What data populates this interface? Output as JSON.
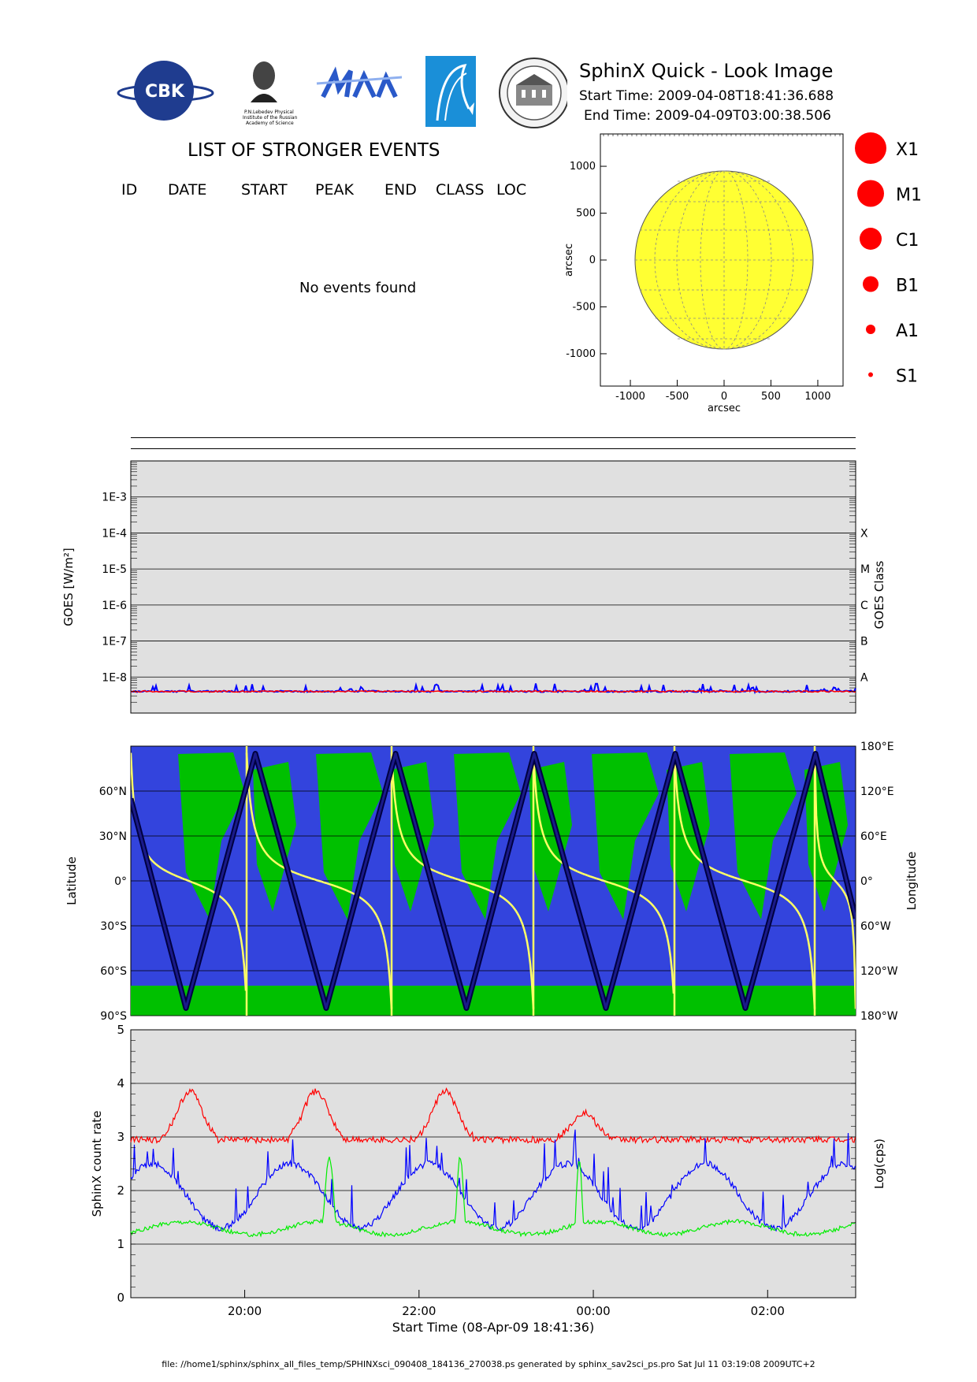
{
  "header": {
    "title": "SphinX Quick - Look Image",
    "start_time": "Start Time: 2009-04-08T18:41:36.688",
    "end_time": "End Time: 2009-04-09T03:00:38.506",
    "logos": [
      {
        "name": "cbk-pan-logo",
        "text": "CBK"
      },
      {
        "name": "lebedev-institute-logo",
        "text": "P.N.Lebedev Physical Institute of the Russian Academy of Science"
      },
      {
        "name": "mifi-logo",
        "text": ""
      },
      {
        "name": "comet-logo",
        "text": ""
      },
      {
        "name": "seal-logo",
        "text": ""
      }
    ]
  },
  "events": {
    "title": "LIST OF STRONGER EVENTS",
    "columns": [
      "ID",
      "DATE",
      "START",
      "PEAK",
      "END",
      "CLASS",
      "LOC"
    ],
    "empty_text": "No events found"
  },
  "sun_map": {
    "xlabel": "arcsec",
    "ylabel": "arcsec",
    "xticks": [
      "-1000",
      "-500",
      "0",
      "500",
      "1000"
    ],
    "yticks": [
      "1000",
      "500",
      "0",
      "-500",
      "-1000"
    ],
    "disk_color": "#ffff33"
  },
  "size_legend": [
    {
      "label": "X1"
    },
    {
      "label": "M1"
    },
    {
      "label": "C1"
    },
    {
      "label": "B1"
    },
    {
      "label": "A1"
    },
    {
      "label": "S1"
    }
  ],
  "chart_data": [
    {
      "type": "line",
      "ylabel": "GOES [W/m²]",
      "y2label": "GOES Class",
      "yscale": "log",
      "ylim": [
        1e-09,
        0.01
      ],
      "ytick_labels": [
        "1E-3",
        "1E-4",
        "1E-5",
        "1E-6",
        "1E-7",
        "1E-8"
      ],
      "class_labels": [
        "X",
        "M",
        "C",
        "B",
        "A"
      ],
      "series": [
        {
          "color": "#0000ff",
          "baseline": 4e-09
        },
        {
          "color": "#ff0000",
          "baseline": 4e-09
        }
      ],
      "background": "#e0e0e0"
    },
    {
      "type": "line",
      "ylabel": "Latitude",
      "y2label": "Longitude",
      "ylim": [
        -90,
        90
      ],
      "lat_ticks": [
        "60°N",
        "30°N",
        "0°",
        "30°S",
        "60°S",
        "90°S"
      ],
      "lon_ticks": [
        "180°E",
        "120°E",
        "60°E",
        "0°",
        "60°W",
        "120°W",
        "180°W"
      ],
      "orbit_color": "#000040",
      "longitude_color": "#ffff66",
      "land_color": "#00c000",
      "ocean_color": "#3344dd"
    },
    {
      "type": "line",
      "ylabel": "SphinX count rate",
      "y2label": "Log(cps)",
      "xlabel": "Start Time (08-Apr-09 18:41:36)",
      "ylim": [
        0,
        5
      ],
      "yticks": [
        0,
        1,
        2,
        3,
        4,
        5
      ],
      "x_tick_labels": [
        "20:00",
        "22:00",
        "00:00",
        "02:00"
      ],
      "series": [
        {
          "color": "#ff0000"
        },
        {
          "color": "#0000ff"
        },
        {
          "color": "#00ee00"
        }
      ],
      "background": "#e0e0e0"
    }
  ],
  "footer": "file: //home1/sphinx/sphinx_all_files_temp/SPHINXsci_090408_184136_270038.ps generated by sphinx_sav2sci_ps.pro Sat Jul 11 03:19:08 2009UTC+2"
}
